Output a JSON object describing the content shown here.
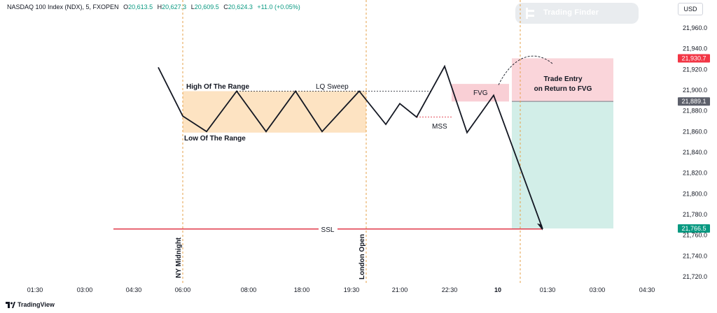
{
  "symbol": {
    "title": "NASDAQ 100 Index (NDX), 5, FXOPEN",
    "open_label": "O",
    "open_value": "20,613.5",
    "high_label": "H",
    "high_value": "20,627.3",
    "low_label": "L",
    "low_value": "20,609.5",
    "close_label": "C",
    "close_value": "20,624.3",
    "change": "+11.0 (+0.05%)"
  },
  "currency": "USD",
  "watermark": "Trading Finder",
  "brand": "TradingView",
  "colors": {
    "range_box": "#fde3c2",
    "fvg_box": "#f9cfd5",
    "stop_zone": "#fad5da",
    "target_zone": "#d2eee8",
    "ssl_line": "#e03a4a",
    "session_line": "#e6a04a",
    "price_line": "#131722",
    "badge_red": "#f23645",
    "badge_gray": "#5d606b",
    "badge_green": "#089981"
  },
  "chart_data": {
    "type": "line",
    "y_axis_ticks": [
      "21,960.0",
      "21,940.0",
      "21,920.0",
      "21,900.0",
      "21,880.0",
      "21,860.0",
      "21,840.0",
      "21,820.0",
      "21,800.0",
      "21,780.0",
      "21,760.0",
      "21,740.0",
      "21,720.0"
    ],
    "ylim": [
      21712,
      21980
    ],
    "x_axis_ticks": [
      "01:30",
      "03:00",
      "04:30",
      "06:00",
      "08:00",
      "18:00",
      "19:30",
      "21:00",
      "22:30",
      "10",
      "01:30",
      "03:00",
      "04:30"
    ],
    "price_path": [
      21922,
      21875,
      21860,
      21899,
      21860,
      21899,
      21860,
      21899,
      21867,
      21887,
      21874,
      21923,
      21859,
      21895,
      21766
    ],
    "price_badges": [
      {
        "label": "21,930.7",
        "value": 21930.7,
        "kind": "stop"
      },
      {
        "label": "21,889.1",
        "value": 21889.1,
        "kind": "entry"
      },
      {
        "label": "21,766.5",
        "value": 21766.5,
        "kind": "target"
      }
    ],
    "annotations": {
      "high_range": "High Of The Range",
      "low_range": "Low Of The Range",
      "lq_sweep": "LQ Sweep",
      "fvg": "FVG",
      "mss": "MSS",
      "trade_entry_1": "Trade Entry",
      "trade_entry_2": "on Return to FVG",
      "ssl": "SSL",
      "ny_midnight": "NY Midnight",
      "london_open": "London Open"
    }
  }
}
